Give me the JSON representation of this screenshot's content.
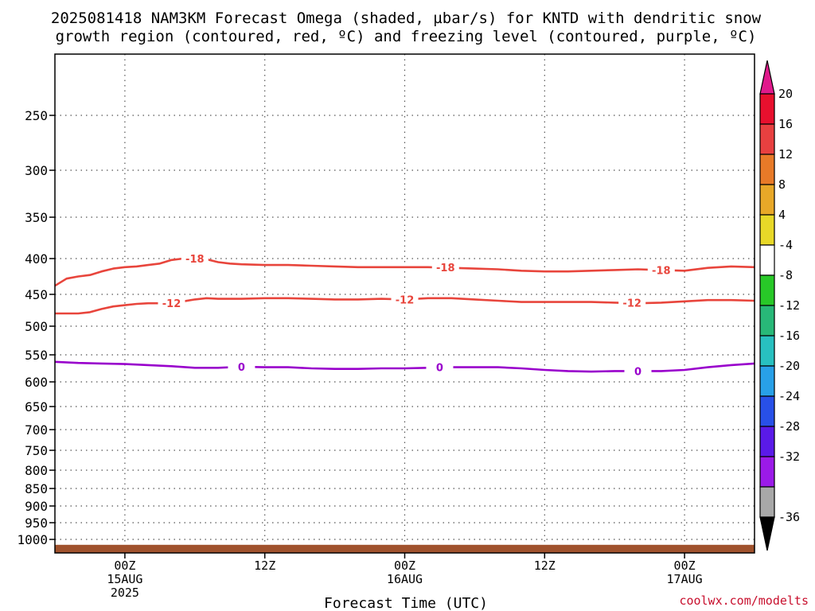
{
  "chart_data": {
    "type": "line",
    "title_line1": "2025081418 NAM3KM Forecast Omega (shaded, µbar/s) for KNTD with dendritic snow",
    "title_line2": "growth region (contoured, red, ºC) and freezing level (contoured, purple, ºC)",
    "xlabel": "Forecast Time (UTC)",
    "credit": "coolwx.com/modelts",
    "y_axis": {
      "scale": "pressure (inverted, log-like)",
      "range": [
        1030,
        200
      ],
      "ticks": [
        250,
        300,
        350,
        400,
        450,
        500,
        550,
        600,
        650,
        700,
        750,
        800,
        850,
        900,
        950,
        1000
      ]
    },
    "x_axis": {
      "range_hours": [
        -6,
        54
      ],
      "ticks": [
        {
          "hour": 0,
          "l1": "00Z",
          "l2": "15AUG",
          "l3": "2025"
        },
        {
          "hour": 12,
          "l1": "12Z",
          "l2": "",
          "l3": ""
        },
        {
          "hour": 24,
          "l1": "00Z",
          "l2": "16AUG",
          "l3": ""
        },
        {
          "hour": 36,
          "l1": "12Z",
          "l2": "",
          "l3": ""
        },
        {
          "hour": 48,
          "l1": "00Z",
          "l2": "17AUG",
          "l3": ""
        }
      ]
    },
    "grid": true,
    "series": [
      {
        "name": "-18",
        "color": "#e8453c",
        "points": [
          [
            -6,
            438
          ],
          [
            -5,
            428
          ],
          [
            -4,
            425
          ],
          [
            -3,
            423
          ],
          [
            -2,
            418
          ],
          [
            -1,
            414
          ],
          [
            0,
            412
          ],
          [
            1,
            411
          ],
          [
            2,
            409
          ],
          [
            3,
            407
          ],
          [
            4,
            402
          ],
          [
            5,
            400
          ],
          [
            6,
            400
          ],
          [
            7,
            401
          ],
          [
            8,
            405
          ],
          [
            9,
            407
          ],
          [
            10,
            408
          ],
          [
            12,
            409
          ],
          [
            14,
            409
          ],
          [
            16,
            410
          ],
          [
            18,
            411
          ],
          [
            20,
            412
          ],
          [
            22,
            412
          ],
          [
            24,
            412
          ],
          [
            26,
            412
          ],
          [
            28,
            413
          ],
          [
            30,
            414
          ],
          [
            32,
            415
          ],
          [
            34,
            417
          ],
          [
            36,
            418
          ],
          [
            38,
            418
          ],
          [
            40,
            417
          ],
          [
            42,
            416
          ],
          [
            44,
            415
          ],
          [
            46,
            416
          ],
          [
            48,
            417
          ],
          [
            50,
            413
          ],
          [
            52,
            411
          ],
          [
            54,
            412
          ]
        ],
        "labels": [
          {
            "x": 6,
            "y": 400,
            "text": "-18"
          },
          {
            "x": 27.5,
            "y": 412,
            "text": "-18"
          },
          {
            "x": 46,
            "y": 416,
            "text": "-18"
          }
        ]
      },
      {
        "name": "-12",
        "color": "#e8453c",
        "points": [
          [
            -6,
            480
          ],
          [
            -4,
            480
          ],
          [
            -3,
            478
          ],
          [
            -2,
            473
          ],
          [
            -1,
            469
          ],
          [
            0,
            467
          ],
          [
            1,
            465
          ],
          [
            2,
            464
          ],
          [
            3,
            464
          ],
          [
            4,
            464
          ],
          [
            5,
            461
          ],
          [
            6,
            458
          ],
          [
            7,
            456
          ],
          [
            8,
            457
          ],
          [
            10,
            457
          ],
          [
            12,
            456
          ],
          [
            14,
            456
          ],
          [
            16,
            457
          ],
          [
            18,
            458
          ],
          [
            20,
            458
          ],
          [
            22,
            457
          ],
          [
            24,
            458
          ],
          [
            26,
            456
          ],
          [
            28,
            456
          ],
          [
            30,
            458
          ],
          [
            32,
            460
          ],
          [
            34,
            462
          ],
          [
            36,
            462
          ],
          [
            38,
            462
          ],
          [
            40,
            462
          ],
          [
            42,
            463
          ],
          [
            44,
            464
          ],
          [
            46,
            463
          ],
          [
            48,
            461
          ],
          [
            50,
            459
          ],
          [
            52,
            459
          ],
          [
            54,
            460
          ]
        ],
        "labels": [
          {
            "x": 4,
            "y": 464,
            "text": "-12"
          },
          {
            "x": 24,
            "y": 458,
            "text": "-12"
          },
          {
            "x": 43.5,
            "y": 463,
            "text": "-12"
          }
        ]
      },
      {
        "name": "0",
        "color": "#9900cc",
        "points": [
          [
            -6,
            563
          ],
          [
            -4,
            565
          ],
          [
            -2,
            566
          ],
          [
            0,
            567
          ],
          [
            2,
            569
          ],
          [
            4,
            571
          ],
          [
            6,
            574
          ],
          [
            8,
            574
          ],
          [
            10,
            572
          ],
          [
            12,
            573
          ],
          [
            14,
            573
          ],
          [
            16,
            575
          ],
          [
            18,
            576
          ],
          [
            20,
            576
          ],
          [
            22,
            575
          ],
          [
            24,
            575
          ],
          [
            26,
            574
          ],
          [
            28,
            573
          ],
          [
            30,
            573
          ],
          [
            32,
            573
          ],
          [
            34,
            575
          ],
          [
            36,
            578
          ],
          [
            38,
            580
          ],
          [
            40,
            581
          ],
          [
            42,
            580
          ],
          [
            44,
            580
          ],
          [
            46,
            580
          ],
          [
            48,
            578
          ],
          [
            50,
            573
          ],
          [
            52,
            569
          ],
          [
            54,
            566
          ]
        ],
        "labels": [
          {
            "x": 10,
            "y": 572,
            "text": "0"
          },
          {
            "x": 27,
            "y": 573,
            "text": "0"
          },
          {
            "x": 44,
            "y": 580,
            "text": "0"
          }
        ]
      }
    ],
    "ground_fill": {
      "color": "#a0522d",
      "from_pressure": 1030,
      "to_pressure": 1012
    },
    "colorbar": {
      "labels": [
        "20",
        "16",
        "12",
        "8",
        "4",
        "-4",
        "-8",
        "-12",
        "-16",
        "-20",
        "-24",
        "-28",
        "-32",
        "-36"
      ],
      "colors": [
        "#e8102e",
        "#e84040",
        "#e87a28",
        "#e8a828",
        "#e8d828",
        "#ffffff",
        "#28c828",
        "#28b878",
        "#28c0c0",
        "#28a0e8",
        "#2850e8",
        "#5a1ae8",
        "#9b1ae8",
        "#a8a8a8"
      ],
      "top_arrow_color": "#e01a8c",
      "bottom_arrow_color": "#000000"
    }
  }
}
